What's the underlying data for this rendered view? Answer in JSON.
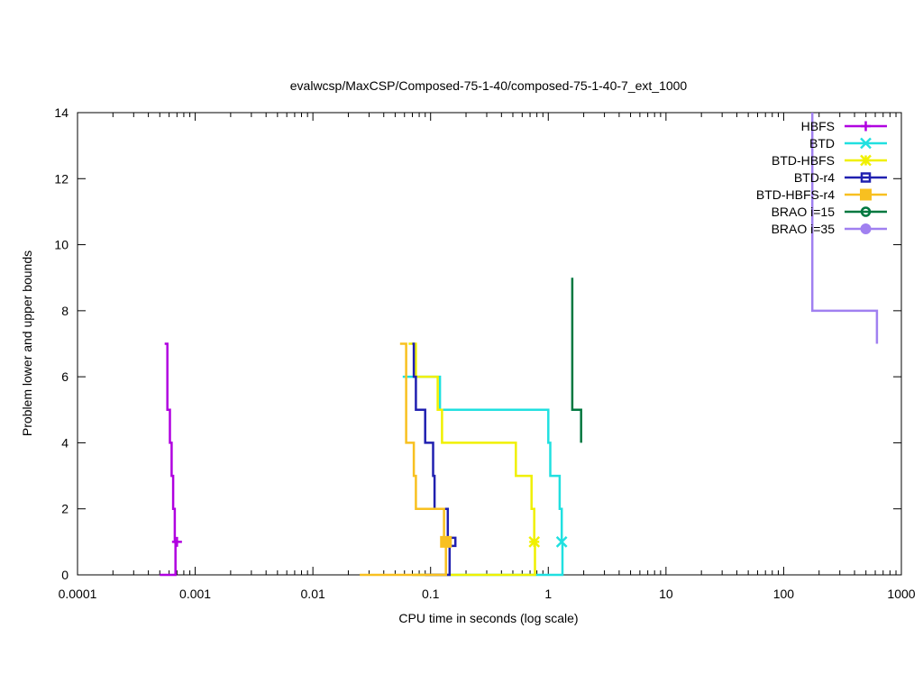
{
  "chart_data": {
    "type": "line",
    "title": "evalwcsp/MaxCSP/Composed-75-1-40/composed-75-1-40-7_ext_1000",
    "xlabel": "CPU time in seconds (log scale)",
    "ylabel": "Problem lower and upper bounds",
    "xscale": "log",
    "xlim": [
      0.0001,
      1000
    ],
    "ylim": [
      0,
      14
    ],
    "x_ticks": [
      0.0001,
      0.001,
      0.01,
      0.1,
      1,
      10,
      100,
      1000
    ],
    "x_tick_labels": [
      "0.0001",
      "0.001",
      "0.01",
      "0.1",
      "1",
      "10",
      "100",
      "1000"
    ],
    "y_ticks": [
      0,
      2,
      4,
      6,
      8,
      10,
      12,
      14
    ],
    "y_tick_labels": [
      "0",
      "2",
      "4",
      "6",
      "8",
      "10",
      "12",
      "14"
    ],
    "grid": false,
    "legend_position": "top-right",
    "series": [
      {
        "name": "HBFS",
        "color": "#b000e0",
        "marker": "plus",
        "upper": [
          [
            0.00055,
            7
          ],
          [
            0.00058,
            7
          ],
          [
            0.00058,
            5
          ],
          [
            0.00061,
            5
          ],
          [
            0.00061,
            4
          ],
          [
            0.00063,
            4
          ],
          [
            0.00063,
            3
          ],
          [
            0.00065,
            3
          ],
          [
            0.00065,
            2
          ],
          [
            0.00067,
            2
          ],
          [
            0.00067,
            1
          ],
          [
            0.0007,
            1
          ]
        ],
        "lower": [
          [
            0.0005,
            0
          ],
          [
            0.00068,
            0
          ],
          [
            0.00068,
            1
          ]
        ],
        "final": [
          0.0007,
          1
        ]
      },
      {
        "name": "BTD",
        "color": "#20e0e0",
        "marker": "cross",
        "upper": [
          [
            0.058,
            6
          ],
          [
            0.12,
            6
          ],
          [
            0.12,
            5
          ],
          [
            1.0,
            5
          ],
          [
            1.0,
            4
          ],
          [
            1.04,
            4
          ],
          [
            1.04,
            3
          ],
          [
            1.25,
            3
          ],
          [
            1.25,
            2
          ],
          [
            1.3,
            2
          ],
          [
            1.3,
            1
          ]
        ],
        "lower": [
          [
            0.07,
            0
          ],
          [
            1.32,
            0
          ],
          [
            1.32,
            1
          ]
        ],
        "final": [
          1.3,
          1
        ]
      },
      {
        "name": "BTD-HBFS",
        "color": "#f0f000",
        "marker": "star",
        "upper": [
          [
            0.065,
            7
          ],
          [
            0.075,
            7
          ],
          [
            0.075,
            6
          ],
          [
            0.115,
            6
          ],
          [
            0.115,
            5
          ],
          [
            0.125,
            5
          ],
          [
            0.125,
            4
          ],
          [
            0.53,
            4
          ],
          [
            0.53,
            3
          ],
          [
            0.72,
            3
          ],
          [
            0.72,
            2
          ],
          [
            0.76,
            2
          ],
          [
            0.76,
            1
          ]
        ],
        "lower": [
          [
            0.07,
            0
          ],
          [
            0.77,
            0
          ],
          [
            0.77,
            1
          ]
        ],
        "final": [
          0.76,
          1
        ]
      },
      {
        "name": "BTD-r4",
        "color": "#2020b0",
        "marker": "box-open",
        "upper": [
          [
            0.07,
            7
          ],
          [
            0.072,
            7
          ],
          [
            0.072,
            6
          ],
          [
            0.075,
            6
          ],
          [
            0.075,
            5
          ],
          [
            0.09,
            5
          ],
          [
            0.09,
            4
          ],
          [
            0.105,
            4
          ],
          [
            0.105,
            3
          ],
          [
            0.108,
            3
          ],
          [
            0.108,
            2
          ],
          [
            0.14,
            2
          ],
          [
            0.14,
            1
          ]
        ],
        "lower": [
          [
            0.09,
            0
          ],
          [
            0.145,
            0
          ],
          [
            0.145,
            1
          ]
        ],
        "final": [
          0.15,
          1
        ]
      },
      {
        "name": "BTD-HBFS-r4",
        "color": "#f8c020",
        "marker": "box-filled",
        "upper": [
          [
            0.055,
            7
          ],
          [
            0.062,
            7
          ],
          [
            0.062,
            4
          ],
          [
            0.072,
            4
          ],
          [
            0.072,
            3
          ],
          [
            0.075,
            3
          ],
          [
            0.075,
            2
          ],
          [
            0.13,
            2
          ],
          [
            0.13,
            1
          ]
        ],
        "lower": [
          [
            0.025,
            0
          ],
          [
            0.135,
            0
          ],
          [
            0.135,
            1
          ]
        ],
        "final": [
          0.135,
          1
        ]
      },
      {
        "name": "BRAO i=15",
        "color": "#007840",
        "marker": "circle-open",
        "upper": [
          [
            1.6,
            9
          ],
          [
            1.6,
            5
          ],
          [
            1.9,
            5
          ],
          [
            1.9,
            4
          ]
        ],
        "lower": [],
        "final": null
      },
      {
        "name": "BRAO i=35",
        "color": "#a080f0",
        "marker": "circle-filled",
        "upper": [
          [
            175,
            14
          ],
          [
            175,
            8
          ],
          [
            620,
            8
          ],
          [
            620,
            7
          ]
        ],
        "lower": [],
        "final": null
      }
    ]
  }
}
